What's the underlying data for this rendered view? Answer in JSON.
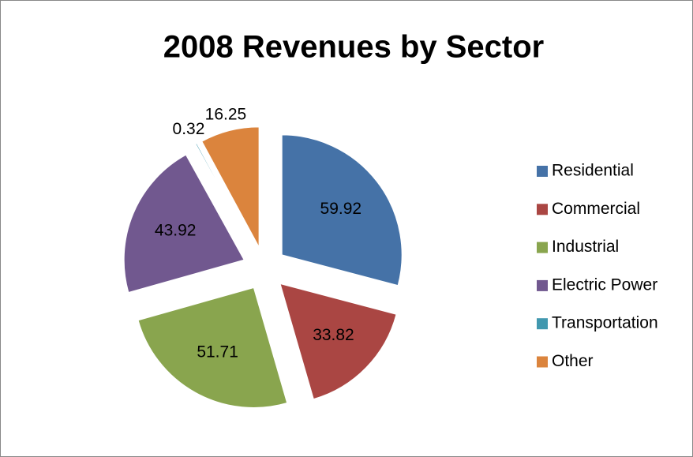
{
  "chart_data": {
    "type": "pie",
    "title": "2008 Revenues by Sector",
    "categories": [
      "Residential",
      "Commercial",
      "Industrial",
      "Electric Power",
      "Transportation",
      "Other"
    ],
    "values": [
      59.92,
      33.82,
      51.71,
      43.92,
      0.32,
      16.25
    ],
    "colors": [
      "#4572a7",
      "#aa4643",
      "#89a54e",
      "#71588f",
      "#4198af",
      "#db843d"
    ],
    "exploded": true,
    "legend": "right"
  }
}
